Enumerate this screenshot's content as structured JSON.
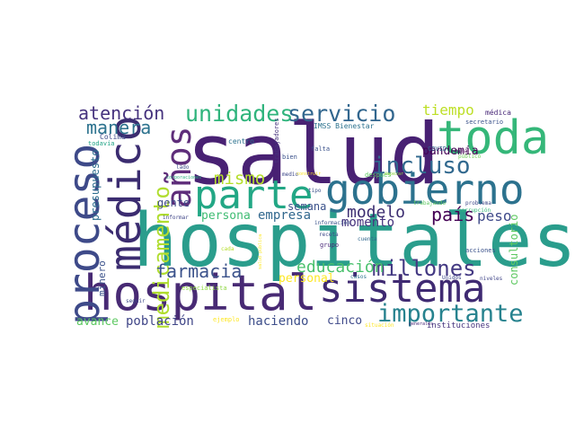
{
  "words": [
    {
      "text": "salud",
      "color": "#482173",
      "rotated": false
    },
    {
      "text": "hospitales",
      "color": "#2a9d8c",
      "rotated": false
    },
    {
      "text": "hospital",
      "color": "#482a74",
      "rotated": false
    },
    {
      "text": "sistema",
      "color": "#3f2a72",
      "rotated": false
    },
    {
      "text": "gobierno",
      "color": "#2c728e",
      "rotated": false
    },
    {
      "text": "proceso",
      "color": "#3e4a89",
      "rotated": true
    },
    {
      "text": "médico",
      "color": "#3b2c70",
      "rotated": true
    },
    {
      "text": "toda",
      "color": "#35b779",
      "rotated": false
    },
    {
      "text": "parte",
      "color": "#22a785",
      "rotated": false
    },
    {
      "text": "años",
      "color": "#5e2d7a",
      "rotated": true
    },
    {
      "text": "importante",
      "color": "#26828e",
      "rotated": false
    },
    {
      "text": "medicamento",
      "color": "#b0dd2f",
      "rotated": true
    },
    {
      "text": "incluso",
      "color": "#30688e",
      "rotated": false
    },
    {
      "text": "unidades",
      "color": "#2fb47c",
      "rotated": false
    },
    {
      "text": "servicio",
      "color": "#31668e",
      "rotated": false
    },
    {
      "text": "millones",
      "color": "#443a83",
      "rotated": false
    },
    {
      "text": "atención",
      "color": "#46337e",
      "rotated": false
    },
    {
      "text": "manera",
      "color": "#2c728e",
      "rotated": false
    },
    {
      "text": "farmacia",
      "color": "#3b528b",
      "rotated": false
    },
    {
      "text": "educación",
      "color": "#4ac16d",
      "rotated": false
    },
    {
      "text": "mismo",
      "color": "#b5de2b",
      "rotated": false
    },
    {
      "text": "modelo",
      "color": "#3b2c70",
      "rotated": false
    },
    {
      "text": "país",
      "color": "#440154",
      "rotated": false
    },
    {
      "text": "peso",
      "color": "#3e4989",
      "rotated": false
    },
    {
      "text": "tiempo",
      "color": "#bddf26",
      "rotated": false
    },
    {
      "text": "pandemia",
      "color": "#440154",
      "rotated": false
    },
    {
      "text": "momento",
      "color": "#46337e",
      "rotated": false
    },
    {
      "text": "empresa",
      "color": "#31688e",
      "rotated": false
    },
    {
      "text": "persona",
      "color": "#3fbc73",
      "rotated": false
    },
    {
      "text": "gente",
      "color": "#3e4a89",
      "rotated": false
    },
    {
      "text": "semana",
      "color": "#3b528b",
      "rotated": false
    },
    {
      "text": "población",
      "color": "#404688",
      "rotated": false
    },
    {
      "text": "haciendo",
      "color": "#3d4e8a",
      "rotated": false
    },
    {
      "text": "avance",
      "color": "#5ec962",
      "rotated": false
    },
    {
      "text": "cinco",
      "color": "#3e4989",
      "rotated": false
    },
    {
      "text": "personal",
      "color": "#fde725",
      "rotated": false
    },
    {
      "text": "presupuesto",
      "color": "#2e6e8e",
      "rotated": true
    },
    {
      "text": "consultorio",
      "color": "#5ec962",
      "rotated": true
    },
    {
      "text": "minero",
      "color": "#3b528b",
      "rotated": true
    },
    {
      "text": "instituciones",
      "color": "#46337e",
      "rotated": false
    },
    {
      "text": "médica",
      "color": "#482878",
      "rotated": false
    },
    {
      "text": "secretario",
      "color": "#3b528b",
      "rotated": false
    },
    {
      "text": "IMSS Bienestar",
      "color": "#2c728e",
      "rotated": false
    },
    {
      "text": "COVID",
      "color": "#33638d",
      "rotated": false
    },
    {
      "text": "público",
      "color": "#6ece58",
      "rotated": false
    },
    {
      "text": "mina",
      "color": "#440154",
      "rotated": false
    },
    {
      "text": "falta",
      "color": "#3b528b",
      "rotated": false
    },
    {
      "text": "bien",
      "color": "#3b528b",
      "rotated": false
    },
    {
      "text": "centro",
      "color": "#2c728e",
      "rotated": false
    },
    {
      "text": "trabajadores",
      "color": "#46337e",
      "rotated": true
    },
    {
      "text": "Colima",
      "color": "#3e4989",
      "rotated": false
    },
    {
      "text": "todavía",
      "color": "#20a486",
      "rotated": false
    },
    {
      "text": "lado",
      "color": "#3e4989",
      "rotated": false
    },
    {
      "text": "corporaciones",
      "color": "#2ab07f",
      "rotated": false
    },
    {
      "text": "después",
      "color": "#5ec962",
      "rotated": false
    },
    {
      "text": "trabajando",
      "color": "#5ec962",
      "rotated": false
    },
    {
      "text": "problema",
      "color": "#3e4989",
      "rotated": false
    },
    {
      "text": "corrupción",
      "color": "#35b779",
      "rotated": false
    },
    {
      "text": "informar",
      "color": "#404688",
      "rotated": false
    },
    {
      "text": "información",
      "color": "#3b528b",
      "rotated": false
    },
    {
      "text": "receta",
      "color": "#3e4989",
      "rotated": false
    },
    {
      "text": "grupo",
      "color": "#482878",
      "rotated": false
    },
    {
      "text": "cuenta",
      "color": "#31688e",
      "rotated": false
    },
    {
      "text": "cada",
      "color": "#b5de2b",
      "rotated": false
    },
    {
      "text": "especialista",
      "color": "#8fd744",
      "rotated": false
    },
    {
      "text": "seguir",
      "color": "#3e4a89",
      "rotated": false
    },
    {
      "text": "ejemplo",
      "color": "#fde725",
      "rotated": false
    },
    {
      "text": "casos",
      "color": "#2c728e",
      "rotated": false
    },
    {
      "text": "acciones",
      "color": "#3b528b",
      "rotated": false
    },
    {
      "text": "Unidos",
      "color": "#3e4989",
      "rotated": false
    },
    {
      "text": "niveles",
      "color": "#404688",
      "rotated": false
    },
    {
      "text": "situación",
      "color": "#fde725",
      "rotated": false
    },
    {
      "text": "generales",
      "color": "#482878",
      "rotated": false
    },
    {
      "text": "tipo",
      "color": "#3b528b",
      "rotated": false
    },
    {
      "text": "medio",
      "color": "#3e4989",
      "rotated": false
    },
    {
      "text": "construir",
      "color": "#fde725",
      "rotated": false
    },
    {
      "text": "salud pública",
      "color": "#fde725",
      "rotated": true
    },
    {
      "text": "empezar",
      "color": "#8fd744",
      "rotated": false
    }
  ]
}
